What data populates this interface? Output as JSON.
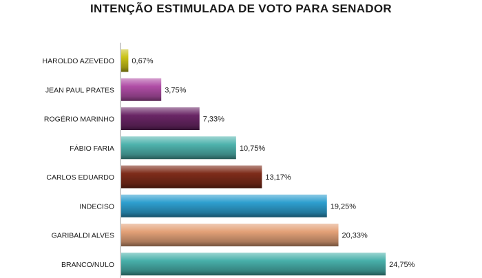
{
  "chart_data": {
    "type": "bar",
    "orientation": "horizontal",
    "title": "INTENÇÃO ESTIMULADA DE VOTO PARA SENADOR",
    "categories": [
      "HAROLDO AZEVEDO",
      "JEAN PAUL PRATES",
      "ROGÉRIO MARINHO",
      "FÁBIO FARIA",
      "CARLOS EDUARDO",
      "INDECISO",
      "GARIBALDI ALVES",
      "BRANCO/NULO"
    ],
    "values": [
      0.67,
      3.75,
      7.33,
      10.75,
      13.17,
      19.25,
      20.33,
      24.75
    ],
    "value_labels": [
      "0,67%",
      "3,75%",
      "7,33%",
      "10,75%",
      "13,17%",
      "19,25%",
      "20,33%",
      "24,75%"
    ],
    "colors": [
      "#c9c219",
      "#b04ea6",
      "#6a2666",
      "#4fb3ad",
      "#7e2c1a",
      "#2e9fcf",
      "#e3a178",
      "#48b0aa"
    ],
    "xlim": [
      0,
      25
    ],
    "grid": false,
    "legend": "none"
  }
}
